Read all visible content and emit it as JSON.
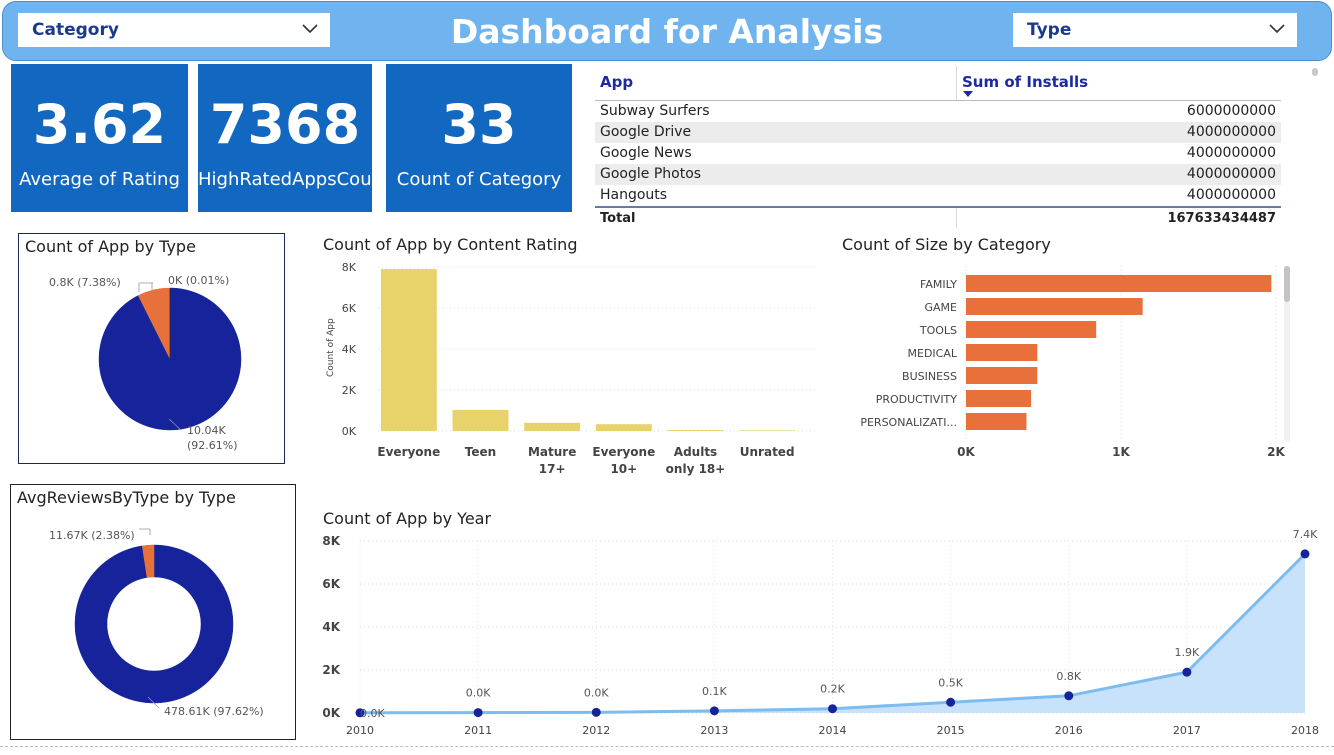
{
  "header": {
    "title": "Dashboard for Analysis"
  },
  "slicers": {
    "category": "Category",
    "type": "Type"
  },
  "cards": [
    {
      "value": "3.62",
      "caption": "Average of Rating"
    },
    {
      "value": "7368",
      "caption": "HighRatedAppsCount"
    },
    {
      "value": "33",
      "caption": "Count of Category"
    }
  ],
  "installs_table": {
    "col_app": "App",
    "col_installs": "Sum of Installs",
    "rows": [
      {
        "app": "Subway Surfers",
        "installs": "6000000000"
      },
      {
        "app": "Google Drive",
        "installs": "4000000000"
      },
      {
        "app": "Google News",
        "installs": "4000000000"
      },
      {
        "app": "Google Photos",
        "installs": "4000000000"
      },
      {
        "app": "Hangouts",
        "installs": "4000000000"
      }
    ],
    "total_label": "Total",
    "total_value": "167633434487"
  },
  "colors": {
    "navy": "#16239a",
    "orange": "#e8703a",
    "yellow": "#e8d36a",
    "card_blue": "#1267c0",
    "line_blue": "#7dbcef"
  },
  "chart_data": [
    {
      "type": "pie",
      "title": "Count of App by Type",
      "slices": [
        {
          "value": 10.04,
          "display": "10.04K",
          "pct_display": "(92.61%)",
          "color": "#16239a"
        },
        {
          "value": 0.8,
          "display": "0.8K (7.38%)",
          "color": "#e8703a"
        },
        {
          "value": 0.001,
          "display": "0K (0.01%)",
          "color": "#222222"
        }
      ]
    },
    {
      "type": "bar",
      "title": "Count of App by Content Rating",
      "ylabel": "Count of App",
      "categories": [
        "Everyone",
        "Teen",
        "Mature 17+",
        "Everyone 10+",
        "Adults only 18+",
        "Unrated"
      ],
      "category_lines": [
        [
          "Everyone"
        ],
        [
          "Teen"
        ],
        [
          "Mature",
          "17+"
        ],
        [
          "Everyone",
          "10+"
        ],
        [
          "Adults",
          "only 18+"
        ],
        [
          "Unrated"
        ]
      ],
      "values": [
        7900,
        1030,
        400,
        330,
        50,
        30
      ],
      "ylim": [
        0,
        8000
      ],
      "yticks": [
        "0K",
        "2K",
        "4K",
        "6K",
        "8K"
      ]
    },
    {
      "type": "bar",
      "orientation": "horizontal",
      "title": "Count of Size by Category",
      "categories": [
        "FAMILY",
        "GAME",
        "TOOLS",
        "MEDICAL",
        "BUSINESS",
        "PRODUCTIVITY",
        "PERSONALIZATI..."
      ],
      "values": [
        1970,
        1140,
        840,
        460,
        460,
        420,
        390
      ],
      "xlim": [
        0,
        2000
      ],
      "xticks": [
        "0K",
        "1K",
        "2K"
      ]
    },
    {
      "type": "pie",
      "title": "AvgReviewsByType by Type",
      "donut": true,
      "slices": [
        {
          "value": 478.61,
          "display": "478.61K (97.62%)",
          "color": "#16239a"
        },
        {
          "value": 11.67,
          "display": "11.67K (2.38%)",
          "color": "#e8703a"
        }
      ]
    },
    {
      "type": "area",
      "title": "Count of App by Year",
      "x": [
        "2010",
        "2011",
        "2012",
        "2013",
        "2014",
        "2015",
        "2016",
        "2017",
        "2018"
      ],
      "values": [
        0.01,
        0.02,
        0.03,
        0.1,
        0.2,
        0.5,
        0.8,
        1.9,
        7.4
      ],
      "labels": [
        "0.0K",
        "0.0K",
        "0.0K",
        "0.1K",
        "0.2K",
        "0.5K",
        "0.8K",
        "1.9K",
        "7.4K"
      ],
      "ylim": [
        0,
        8
      ],
      "yticks": [
        "0K",
        "2K",
        "4K",
        "6K",
        "8K"
      ]
    }
  ]
}
